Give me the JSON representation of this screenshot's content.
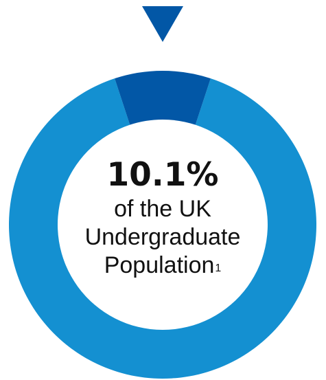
{
  "chart_data": {
    "type": "pie",
    "style": "donut",
    "categories": [
      "UK Undergraduate Population (share shown)",
      "Remainder"
    ],
    "values": [
      10.1,
      89.9
    ],
    "unit": "%",
    "highlight_index": 0,
    "indicator": "downward triangle pointing at highlighted segment",
    "colors": {
      "highlight": "#0257A6",
      "rest": "#1490D1",
      "indicator": "#0257A6"
    },
    "center_label": {
      "value": "10.1%",
      "lines": [
        "of the UK",
        "Undergraduate"
      ],
      "last_line": "Population",
      "footnote_marker": "1"
    }
  }
}
